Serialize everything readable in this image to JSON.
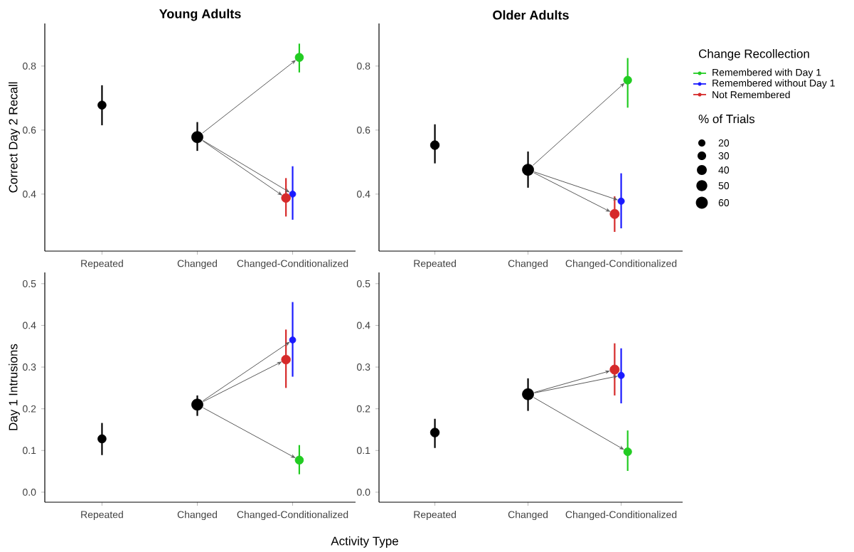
{
  "chart_data": [
    {
      "type": "bubble",
      "title": "Young Adults",
      "ylabel": "Correct Day 2 Recall",
      "categories": [
        "Repeated",
        "Changed",
        "Changed-Conditionalized"
      ],
      "ylim": [
        0.222,
        0.933
      ],
      "yticks": [
        0.4,
        0.6,
        0.8
      ],
      "series": [
        {
          "color": "#000000",
          "values": [
            0.678,
            0.578,
            null
          ],
          "sizes": [
            0.54,
            1,
            null
          ],
          "errors": [
            [
              0.615,
              0.74
            ],
            [
              0.535,
              0.625
            ],
            null
          ]
        },
        {
          "color": "#22cc22",
          "values": [
            null,
            null,
            0.827
          ],
          "sizes": [
            null,
            null,
            0.54
          ],
          "errors": [
            null,
            null,
            [
              0.78,
              0.87
            ]
          ]
        },
        {
          "color": "#1a1aff",
          "values": [
            null,
            null,
            0.4
          ],
          "sizes": [
            null,
            null,
            0.31
          ],
          "errors": [
            null,
            null,
            [
              0.32,
              0.487
            ]
          ]
        },
        {
          "color": "#d62a2a",
          "values": [
            null,
            null,
            0.388
          ],
          "sizes": [
            null,
            null,
            0.62
          ],
          "errors": [
            null,
            null,
            [
              0.33,
              0.45
            ]
          ]
        }
      ]
    },
    {
      "type": "bubble",
      "title": "Older Adults",
      "categories": [
        "Repeated",
        "Changed",
        "Changed-Conditionalized"
      ],
      "ylim": [
        0.222,
        0.933
      ],
      "yticks": [
        0.4,
        0.6,
        0.8
      ],
      "legend": "right",
      "legend_title": "Change Recollection",
      "size_legend": [
        20,
        30,
        40,
        50,
        60
      ],
      "annotations": [
        "% of Trials"
      ],
      "series": [
        {
          "color": "#000000",
          "values": [
            0.553,
            0.476,
            null
          ],
          "sizes": [
            37,
            60,
            null
          ],
          "errors": [
            [
              0.496,
              0.618
            ],
            [
              0.42,
              0.533
            ],
            null
          ]
        },
        {
          "name": "Remembered with Day 1",
          "color": "#22cc22",
          "values": [
            null,
            null,
            0.756
          ],
          "sizes": [
            null,
            null,
            30
          ],
          "errors": [
            null,
            null,
            [
              0.67,
              0.825
            ]
          ]
        },
        {
          "name": "Remembered without Day 1",
          "color": "#1a1aff",
          "values": [
            null,
            null,
            0.378
          ],
          "sizes": [
            null,
            null,
            20
          ],
          "errors": [
            null,
            null,
            [
              0.293,
              0.465
            ]
          ]
        },
        {
          "name": "Not Remembered",
          "color": "#d62a2a",
          "values": [
            null,
            null,
            0.338
          ],
          "sizes": [
            null,
            null,
            40
          ],
          "errors": [
            null,
            null,
            [
              0.282,
              0.393
            ]
          ]
        }
      ]
    },
    {
      "type": "bubble",
      "ylabel": "Day 1 Intrusions",
      "xlabel": "Activity Type",
      "categories": [
        "Repeated",
        "Changed",
        "Changed-Conditionalized"
      ],
      "ylim": [
        -0.024,
        0.527
      ],
      "yticks": [
        {
          "value": 0.0,
          "label": "0.0"
        },
        0.1,
        0.2,
        0.3,
        0.4,
        0.5
      ],
      "series": [
        {
          "color": "#000000",
          "values": [
            0.128,
            0.21,
            null
          ],
          "sizes": [
            0.54,
            1,
            null
          ],
          "errors": [
            [
              0.089,
              0.166
            ],
            [
              0.183,
              0.232
            ],
            null
          ]
        },
        {
          "color": "#22cc22",
          "values": [
            null,
            null,
            0.077
          ],
          "sizes": [
            null,
            null,
            0.54
          ],
          "errors": [
            null,
            null,
            [
              0.043,
              0.113
            ]
          ]
        },
        {
          "color": "#1a1aff",
          "values": [
            null,
            null,
            0.365
          ],
          "sizes": [
            null,
            null,
            0.31
          ],
          "errors": [
            null,
            null,
            [
              0.277,
              0.456
            ]
          ]
        },
        {
          "color": "#d62a2a",
          "values": [
            null,
            null,
            0.318
          ],
          "sizes": [
            null,
            null,
            0.62
          ],
          "errors": [
            null,
            null,
            [
              0.25,
              0.39
            ]
          ]
        }
      ]
    },
    {
      "type": "bubble",
      "categories": [
        "Repeated",
        "Changed",
        "Changed-Conditionalized"
      ],
      "ylim": [
        -0.024,
        0.527
      ],
      "yticks": [
        {
          "value": 0.0,
          "label": "0.0"
        },
        0.1,
        0.2,
        0.3,
        0.4,
        0.5
      ],
      "series": [
        {
          "color": "#000000",
          "values": [
            0.143,
            0.235,
            null
          ],
          "sizes": [
            0.62,
            1,
            null
          ],
          "errors": [
            [
              0.106,
              0.176
            ],
            [
              0.195,
              0.273
            ],
            null
          ]
        },
        {
          "color": "#22cc22",
          "values": [
            null,
            null,
            0.097
          ],
          "sizes": [
            null,
            null,
            0.5
          ],
          "errors": [
            null,
            null,
            [
              0.051,
              0.148
            ]
          ]
        },
        {
          "color": "#1a1aff",
          "values": [
            null,
            null,
            0.28
          ],
          "sizes": [
            null,
            null,
            0.33
          ],
          "errors": [
            null,
            null,
            [
              0.213,
              0.345
            ]
          ]
        },
        {
          "color": "#d62a2a",
          "values": [
            null,
            null,
            0.294
          ],
          "sizes": [
            null,
            null,
            0.67
          ],
          "errors": [
            null,
            null,
            [
              0.232,
              0.357
            ]
          ]
        }
      ]
    }
  ]
}
